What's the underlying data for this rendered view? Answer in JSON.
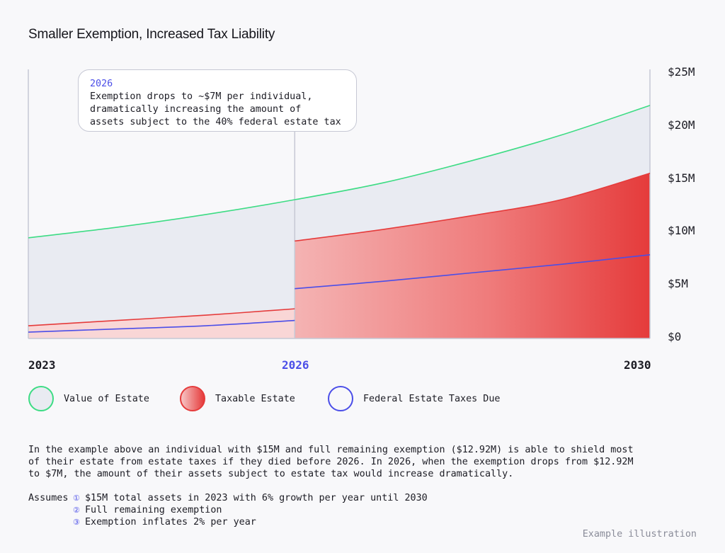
{
  "title": "Smaller Exemption, Increased Tax Liability",
  "chart_data": {
    "type": "area",
    "x": [
      2023,
      2024,
      2025,
      2026,
      2027,
      2028,
      2029,
      2030
    ],
    "x_tick_labels": [
      "2023",
      "2026",
      "2030"
    ],
    "y_tick_labels": [
      "$25M",
      "$20M",
      "$15M",
      "$10M",
      "$5M",
      "$0"
    ],
    "ylim": [
      0,
      25
    ],
    "y_ticks": [
      25,
      20,
      15,
      10,
      5,
      0
    ],
    "y_unit": "$M",
    "series": [
      {
        "name": "Value of Estate",
        "color": "#3ddc84",
        "values": [
          9.5,
          10.5,
          11.7,
          13.1,
          14.7,
          16.8,
          19.2,
          22.0
        ]
      },
      {
        "name": "Taxable Estate",
        "color": "#e53b3b",
        "values_before_2026": [
          1.2,
          1.7,
          2.2,
          2.8
        ],
        "values_from_2026": [
          9.2,
          10.3,
          11.6,
          13.1,
          15.6
        ]
      },
      {
        "name": "Federal Estate Taxes Due",
        "color": "#4b4ee8",
        "values_before_2026": [
          0.6,
          0.9,
          1.2,
          1.7
        ],
        "values_from_2026": [
          4.7,
          5.4,
          6.2,
          7.0,
          7.9
        ]
      }
    ],
    "annotation": {
      "x": 2026,
      "year_label": "2026",
      "lines": [
        "Exemption drops to ~$7M per individual,",
        "dramatically increasing the amount of",
        "assets subject to the 40% federal estate tax"
      ]
    },
    "legend_position": "bottom-left",
    "grid": false
  },
  "legend": [
    {
      "label": "Value of Estate"
    },
    {
      "label": "Taxable Estate"
    },
    {
      "label": "Federal Estate Taxes Due"
    }
  ],
  "description": [
    "In the example above an individual with $15M and full remaining exemption ($12.92M) is able to shield most",
    "of their estate from estate taxes if they died before 2026. In 2026, when the exemption drops from $12.92M",
    "to $7M, the amount of their assets subject to estate tax would increase dramatically."
  ],
  "assumptions": {
    "label": "Assumes",
    "items": [
      {
        "num": "①",
        "text": "$15M total assets in 2023 with 6% growth per year until 2030"
      },
      {
        "num": "②",
        "text": "Full remaining exemption"
      },
      {
        "num": "③",
        "text": "Exemption inflates 2% per year"
      }
    ]
  },
  "footer": "Example illustration"
}
